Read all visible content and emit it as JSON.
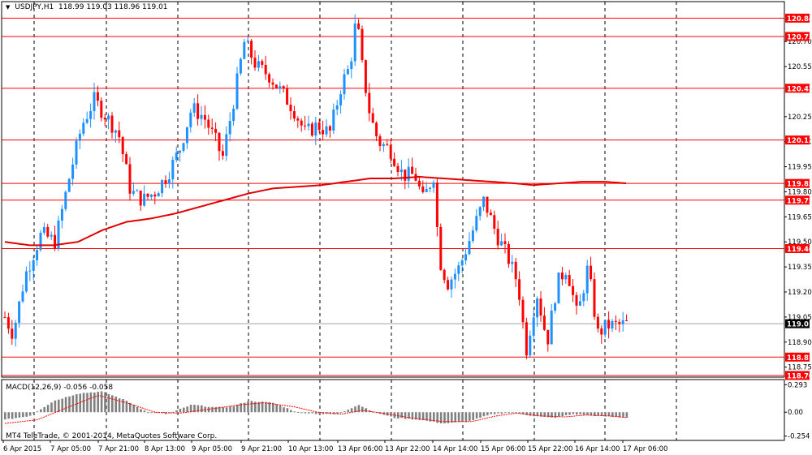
{
  "header": {
    "symbol": "USDJPY,H1",
    "ohlc": "118.99 119.03 118.96 119.01"
  },
  "macd": {
    "label": "MACD(12,26,9) -0.056 -0.058",
    "ticks": [
      "0.293",
      "0.00",
      "-0.254"
    ]
  },
  "copyright": "MT4 TeleTrade, © 2001-2014, MetaQuotes Software Corp.",
  "chart_data": {
    "type": "candlestick",
    "price_ticks": [
      "120.70",
      "120.55",
      "120.25",
      "120.10",
      "119.95",
      "119.80",
      "119.65",
      "119.50",
      "119.35",
      "119.20",
      "119.05",
      "118.90",
      "118.75"
    ],
    "price_range": [
      118.69,
      120.9
    ],
    "horizontal_levels": [
      {
        "value": "120.84",
        "color": "#ff0000"
      },
      {
        "value": "120.73",
        "color": "#ff0000"
      },
      {
        "value": "120.42",
        "color": "#ff0000"
      },
      {
        "value": "120.11",
        "color": "#ff0000"
      },
      {
        "value": "119.85",
        "color": "#ff0000"
      },
      {
        "value": "119.75",
        "color": "#ff0000"
      },
      {
        "value": "119.46",
        "color": "#ff0000"
      },
      {
        "value": "118.81",
        "color": "#ff0000"
      },
      {
        "value": "118.70",
        "color": "#ff0000"
      }
    ],
    "current_price": {
      "value": "119.01",
      "color": "#000000"
    },
    "x_labels": [
      "6 Apr 2015",
      "7 Apr 05:00",
      "7 Apr 21:00",
      "8 Apr 13:00",
      "9 Apr 05:00",
      "9 Apr 21:00",
      "10 Apr 13:00",
      "13 Apr 06:00",
      "13 Apr 22:00",
      "14 Apr 14:00",
      "15 Apr 06:00",
      "15 Apr 22:00",
      "16 Apr 14:00",
      "17 Apr 06:00"
    ],
    "close_path": [
      [
        0,
        119.05
      ],
      [
        10,
        118.95
      ],
      [
        25,
        119.3
      ],
      [
        45,
        119.55
      ],
      [
        62,
        119.5
      ],
      [
        80,
        119.9
      ],
      [
        95,
        120.2
      ],
      [
        110,
        120.35
      ],
      [
        125,
        120.25
      ],
      [
        140,
        120.15
      ],
      [
        155,
        119.8
      ],
      [
        170,
        119.75
      ],
      [
        185,
        119.8
      ],
      [
        200,
        119.9
      ],
      [
        215,
        120.05
      ],
      [
        230,
        120.3
      ],
      [
        245,
        120.25
      ],
      [
        260,
        120.1
      ],
      [
        268,
        120.0
      ],
      [
        280,
        120.3
      ],
      [
        295,
        120.7
      ],
      [
        310,
        120.55
      ],
      [
        325,
        120.5
      ],
      [
        340,
        120.4
      ],
      [
        355,
        120.3
      ],
      [
        370,
        120.15
      ],
      [
        385,
        120.2
      ],
      [
        400,
        120.15
      ],
      [
        415,
        120.45
      ],
      [
        425,
        120.55
      ],
      [
        433,
        120.85
      ],
      [
        440,
        120.55
      ],
      [
        450,
        120.25
      ],
      [
        460,
        120.1
      ],
      [
        475,
        120.05
      ],
      [
        490,
        119.9
      ],
      [
        505,
        119.9
      ],
      [
        515,
        119.75
      ],
      [
        528,
        119.9
      ],
      [
        535,
        119.4
      ],
      [
        545,
        119.25
      ],
      [
        560,
        119.35
      ],
      [
        575,
        119.55
      ],
      [
        590,
        119.75
      ],
      [
        605,
        119.55
      ],
      [
        620,
        119.4
      ],
      [
        632,
        119.25
      ],
      [
        642,
        118.85
      ],
      [
        655,
        119.2
      ],
      [
        668,
        118.9
      ],
      [
        680,
        119.25
      ],
      [
        692,
        119.35
      ],
      [
        705,
        119.05
      ],
      [
        718,
        119.35
      ],
      [
        730,
        118.95
      ],
      [
        742,
        119.0
      ],
      [
        755,
        119.0
      ],
      [
        767,
        119.01
      ]
    ],
    "ma_line": [
      [
        0,
        119.5
      ],
      [
        30,
        119.48
      ],
      [
        60,
        119.48
      ],
      [
        90,
        119.5
      ],
      [
        120,
        119.57
      ],
      [
        150,
        119.62
      ],
      [
        180,
        119.64
      ],
      [
        210,
        119.67
      ],
      [
        240,
        119.71
      ],
      [
        270,
        119.75
      ],
      [
        300,
        119.79
      ],
      [
        330,
        119.82
      ],
      [
        360,
        119.83
      ],
      [
        390,
        119.84
      ],
      [
        420,
        119.86
      ],
      [
        450,
        119.88
      ],
      [
        480,
        119.88
      ],
      [
        510,
        119.89
      ],
      [
        540,
        119.88
      ],
      [
        570,
        119.87
      ],
      [
        600,
        119.86
      ],
      [
        630,
        119.85
      ],
      [
        650,
        119.84
      ],
      [
        680,
        119.85
      ],
      [
        710,
        119.86
      ],
      [
        740,
        119.86
      ],
      [
        767,
        119.85
      ]
    ],
    "macd_hist_path": [
      [
        0,
        -0.08
      ],
      [
        30,
        -0.04
      ],
      [
        60,
        0.12
      ],
      [
        90,
        0.2
      ],
      [
        120,
        0.22
      ],
      [
        150,
        0.12
      ],
      [
        175,
        0.0
      ],
      [
        200,
        -0.02
      ],
      [
        230,
        0.08
      ],
      [
        260,
        0.05
      ],
      [
        280,
        0.06
      ],
      [
        300,
        0.12
      ],
      [
        330,
        0.1
      ],
      [
        360,
        0.0
      ],
      [
        390,
        -0.02
      ],
      [
        410,
        -0.02
      ],
      [
        435,
        0.08
      ],
      [
        455,
        0.0
      ],
      [
        480,
        -0.06
      ],
      [
        510,
        -0.08
      ],
      [
        540,
        -0.12
      ],
      [
        570,
        -0.1
      ],
      [
        600,
        -0.02
      ],
      [
        625,
        0.0
      ],
      [
        650,
        -0.04
      ],
      [
        675,
        -0.06
      ],
      [
        700,
        -0.02
      ],
      [
        730,
        -0.04
      ],
      [
        767,
        -0.056
      ]
    ],
    "macd_signal_path": [
      [
        0,
        -0.12
      ],
      [
        40,
        -0.08
      ],
      [
        80,
        0.06
      ],
      [
        115,
        0.18
      ],
      [
        150,
        0.1
      ],
      [
        185,
        0.0
      ],
      [
        215,
        -0.01
      ],
      [
        250,
        0.03
      ],
      [
        290,
        0.08
      ],
      [
        320,
        0.1
      ],
      [
        355,
        0.06
      ],
      [
        385,
        0.0
      ],
      [
        415,
        -0.02
      ],
      [
        440,
        0.02
      ],
      [
        465,
        -0.01
      ],
      [
        500,
        -0.06
      ],
      [
        540,
        -0.1
      ],
      [
        575,
        -0.1
      ],
      [
        605,
        -0.04
      ],
      [
        630,
        -0.01
      ],
      [
        660,
        -0.04
      ],
      [
        690,
        -0.05
      ],
      [
        715,
        -0.03
      ],
      [
        745,
        -0.04
      ],
      [
        767,
        -0.058
      ]
    ]
  }
}
